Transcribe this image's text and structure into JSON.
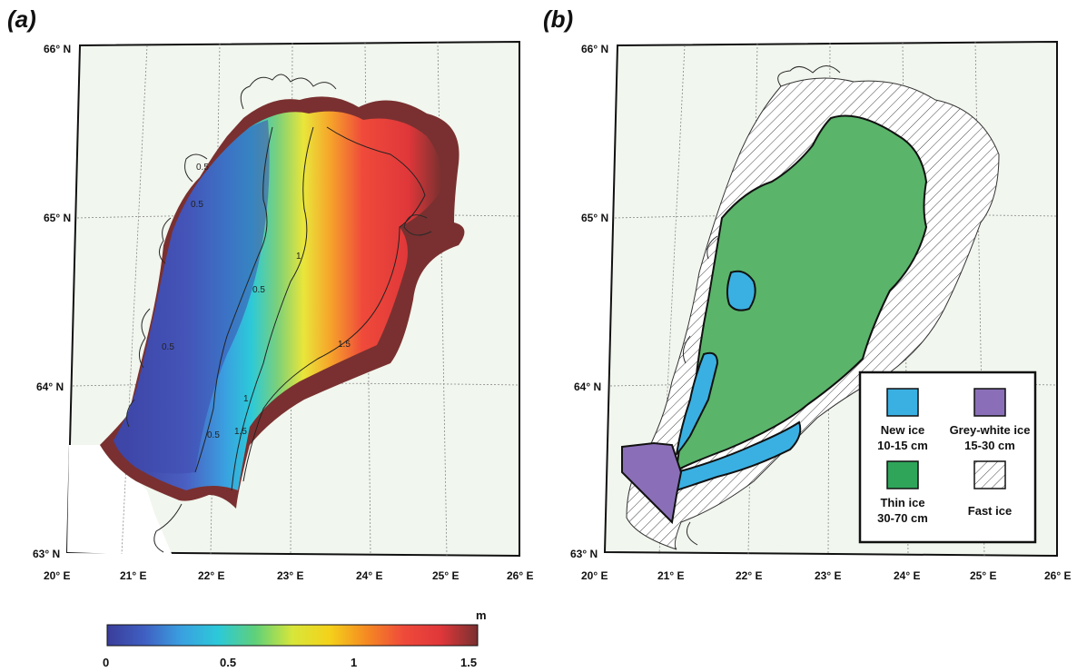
{
  "panels": {
    "a": {
      "label": "(a)"
    },
    "b": {
      "label": "(b)"
    }
  },
  "lat_ticks": [
    "66° N",
    "65° N",
    "64° N",
    "63° N"
  ],
  "lon_ticks": [
    "20° E",
    "21° E",
    "22° E",
    "23° E",
    "24° E",
    "25° E",
    "26° E"
  ],
  "contour_labels": [
    "0.5",
    "0.5",
    "0.5",
    "0.5",
    "0.5",
    "1",
    "1",
    "1.5",
    "1.5"
  ],
  "colorbar": {
    "unit": "m",
    "ticks": [
      "0",
      "0.5",
      "1",
      "1.5"
    ],
    "stops": [
      "#3a3d9a",
      "#3f5fc2",
      "#3aa0e0",
      "#2cc9d9",
      "#5fd07a",
      "#d7e63a",
      "#f4d21a",
      "#f58a22",
      "#ef4a3a",
      "#e0373a",
      "#7a3030"
    ]
  },
  "legend": {
    "items": [
      {
        "name": "New ice",
        "range": "10-15 cm",
        "color": "#3ab0e2"
      },
      {
        "name": "Grey-white ice",
        "range": "15-30 cm",
        "color": "#8a6fb8"
      },
      {
        "name": "Thin ice",
        "range": "30-70 cm",
        "color": "#2fa55a"
      },
      {
        "name": "Fast ice",
        "range": "",
        "color": "hatch"
      }
    ]
  },
  "colors": {
    "land": "#f1f6ee",
    "grid": "#888888",
    "fast_ice_edge": "#ffffff",
    "thin_ice": "#5ab46a",
    "new_ice": "#3ab0e2",
    "grey_white_ice": "#8a6fb8"
  }
}
